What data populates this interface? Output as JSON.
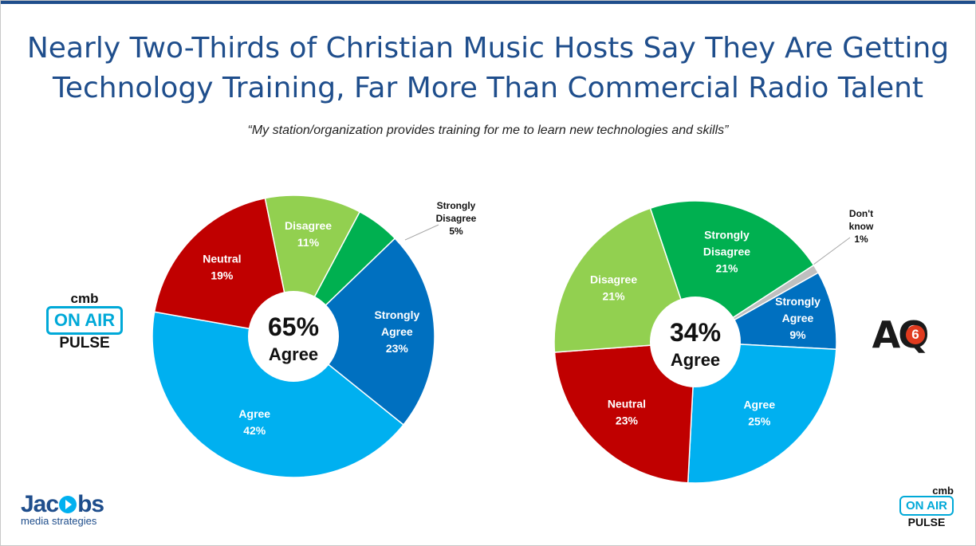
{
  "title_line1": "Nearly Two-Thirds of Christian Music Hosts Say They Are Getting",
  "title_line2": "Technology Training, Far More Than Commercial Radio Talent",
  "subtitle": "“My station/organization provides training for me to learn new technologies and skills”",
  "logos": {
    "left_badge": {
      "top": "cmb",
      "middle": "ON AIR",
      "bottom": "PULSE"
    },
    "right_badge": {
      "top": "cmb",
      "middle": "ON AIR",
      "bottom": "PULSE"
    },
    "aq_text": "AQ",
    "aq_badge": "6",
    "jacobs_word_start": "Jac",
    "jacobs_word_end": "bs",
    "jacobs_sub": "media strategies"
  },
  "colors": {
    "agree": "#00b0f0",
    "neutral": "#c00000",
    "disagree": "#92d050",
    "strongly_disagree": "#00b050",
    "strongly_agree": "#0070c0",
    "dont_know": "#bfbfbf",
    "title": "#1f4e8c"
  },
  "chart_data": [
    {
      "type": "pie",
      "donut": true,
      "center_value": "65%",
      "center_label": "Agree",
      "slices": [
        {
          "label": "Strongly Disagree",
          "value": 5,
          "display": "5%",
          "color": "#00b050"
        },
        {
          "label": "Strongly Agree",
          "value": 23,
          "display": "23%",
          "color": "#0070c0"
        },
        {
          "label": "Agree",
          "value": 42,
          "display": "42%",
          "color": "#00b0f0"
        },
        {
          "label": "Neutral",
          "value": 19,
          "display": "19%",
          "color": "#c00000"
        },
        {
          "label": "Disagree",
          "value": 11,
          "display": "11%",
          "color": "#92d050"
        }
      ]
    },
    {
      "type": "pie",
      "donut": true,
      "center_value": "34%",
      "center_label": "Agree",
      "slices": [
        {
          "label": "Don't know",
          "value": 1,
          "display": "1%",
          "color": "#bfbfbf"
        },
        {
          "label": "Strongly Agree",
          "value": 9,
          "display": "9%",
          "color": "#0070c0"
        },
        {
          "label": "Agree",
          "value": 25,
          "display": "25%",
          "color": "#00b0f0"
        },
        {
          "label": "Neutral",
          "value": 23,
          "display": "23%",
          "color": "#c00000"
        },
        {
          "label": "Disagree",
          "value": 21,
          "display": "21%",
          "color": "#92d050"
        },
        {
          "label": "Strongly Disagree",
          "value": 21,
          "display": "21%",
          "color": "#00b050"
        }
      ]
    }
  ]
}
